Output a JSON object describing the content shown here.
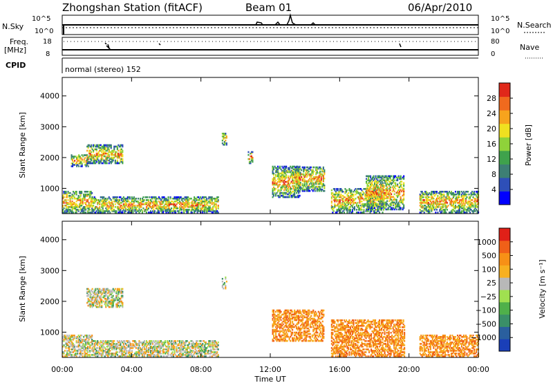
{
  "header": {
    "station": "Zhongshan Station (fitACF)",
    "beam": "Beam 01",
    "date": "06/Apr/2010"
  },
  "aux": {
    "nsky_label": "N.Sky",
    "nsearch_label": "N.Search",
    "noise_ticks": [
      "10^5",
      "10^0"
    ],
    "noise_ticks_right": [
      "10^5",
      "10^0"
    ],
    "freq_label_1": "Freq.",
    "freq_label_2": "[MHz]",
    "freq_ticks": [
      "18",
      "8"
    ],
    "nave_label": "Nave",
    "nave_ticks": [
      "80",
      "0"
    ],
    "cpid_label": "CPID",
    "cpid_text": "normal (stereo) 152"
  },
  "chart_data": [
    {
      "type": "heatmap",
      "panel": "power",
      "ylabel": "Slant Range [km]",
      "yticks": [
        1000,
        2000,
        3000,
        4000
      ],
      "ylim": [
        180,
        4600
      ],
      "xlabel": "Time UT",
      "xticks": [
        "00:00",
        "04:00",
        "08:00",
        "12:00",
        "16:00",
        "20:00",
        "00:00"
      ],
      "xlim_hours": [
        0,
        24
      ],
      "colorbar": {
        "label": "Power [dB]",
        "ticks": [
          "4",
          "8",
          "12",
          "16",
          "20",
          "24",
          "28"
        ],
        "range": [
          0,
          32
        ],
        "colors": [
          "#0000ff",
          "#2e4fb8",
          "#3d7f74",
          "#3fa24c",
          "#8fd23a",
          "#f0e020",
          "#f7a31d",
          "#f06a1e",
          "#e0281a"
        ]
      },
      "echo_regions": [
        {
          "t0": 0.0,
          "t1": 1.7,
          "r0": 200,
          "r1": 900
        },
        {
          "t0": 1.7,
          "t1": 9.0,
          "r0": 200,
          "r1": 700
        },
        {
          "t0": 0.5,
          "t1": 1.5,
          "r0": 1700,
          "r1": 2100
        },
        {
          "t0": 1.4,
          "t1": 3.5,
          "r0": 1800,
          "r1": 2400
        },
        {
          "t0": 9.2,
          "t1": 9.5,
          "r0": 2400,
          "r1": 2800
        },
        {
          "t0": 10.7,
          "t1": 11.0,
          "r0": 1800,
          "r1": 2200
        },
        {
          "t0": 12.1,
          "t1": 13.7,
          "r0": 700,
          "r1": 1700
        },
        {
          "t0": 13.4,
          "t1": 15.1,
          "r0": 900,
          "r1": 1700
        },
        {
          "t0": 15.5,
          "t1": 18.5,
          "r0": 200,
          "r1": 1000
        },
        {
          "t0": 17.5,
          "t1": 19.7,
          "r0": 300,
          "r1": 1400
        },
        {
          "t0": 20.6,
          "t1": 24.0,
          "r0": 200,
          "r1": 900
        }
      ]
    },
    {
      "type": "heatmap",
      "panel": "velocity",
      "ylabel": "Slant Range [km]",
      "yticks": [
        1000,
        2000,
        3000,
        4000
      ],
      "ylim": [
        180,
        4600
      ],
      "xlabel": "Time UT",
      "xticks": [
        "00:00",
        "04:00",
        "08:00",
        "12:00",
        "16:00",
        "20:00",
        "00:00"
      ],
      "xlim_hours": [
        0,
        24
      ],
      "colorbar": {
        "label": "Velocity [m s⁻¹]",
        "ticks": [
          "1000",
          "500",
          "100",
          "25",
          "−25",
          "−100",
          "−500",
          "−1000"
        ],
        "colors": [
          "#1a3fb8",
          "#2a5f9e",
          "#3a8f68",
          "#4fb04a",
          "#a0e050",
          "#b8b8b8",
          "#f7b020",
          "#f79016",
          "#f06018",
          "#e02018"
        ]
      },
      "echo_regions": [
        {
          "t0": 0.0,
          "t1": 1.7,
          "r0": 200,
          "r1": 900
        },
        {
          "t0": 1.7,
          "t1": 9.0,
          "r0": 200,
          "r1": 700
        },
        {
          "t0": 1.4,
          "t1": 3.5,
          "r0": 1800,
          "r1": 2400
        },
        {
          "t0": 9.2,
          "t1": 9.5,
          "r0": 2400,
          "r1": 2800
        },
        {
          "t0": 12.1,
          "t1": 15.1,
          "r0": 700,
          "r1": 1700
        },
        {
          "t0": 15.5,
          "t1": 19.7,
          "r0": 200,
          "r1": 1400
        },
        {
          "t0": 20.6,
          "t1": 24.0,
          "r0": 200,
          "r1": 900
        }
      ]
    }
  ]
}
